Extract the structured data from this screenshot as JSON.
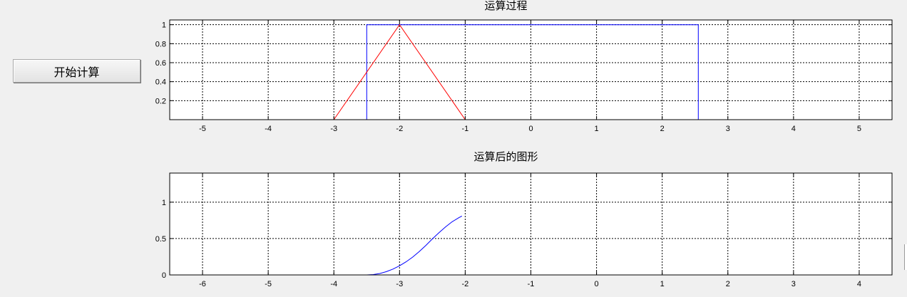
{
  "controls": {
    "start_button_label": "开始计算"
  },
  "chart_data": [
    {
      "type": "line",
      "title": "运算过程",
      "xlabel": "",
      "ylabel": "",
      "xlim": [
        -5.5,
        5.5
      ],
      "ylim": [
        0,
        1.05
      ],
      "xticks": [
        -5,
        -4,
        -3,
        -2,
        -1,
        0,
        1,
        2,
        3,
        4,
        5
      ],
      "yticks": [
        0.2,
        0.4,
        0.6,
        0.8,
        1
      ],
      "grid": true,
      "series": [
        {
          "color": "#0000ff",
          "x": [
            -2.5,
            -2.5,
            2.55,
            2.55
          ],
          "y": [
            0,
            1,
            1,
            0
          ]
        },
        {
          "color": "#ff0000",
          "x": [
            -3,
            -2,
            -1
          ],
          "y": [
            0,
            1,
            0
          ]
        }
      ]
    },
    {
      "type": "line",
      "title": "运算后的图形",
      "xlabel": "",
      "ylabel": "",
      "xlim": [
        -6.5,
        4.5
      ],
      "ylim": [
        0,
        1.4
      ],
      "xticks": [
        -6,
        -5,
        -4,
        -3,
        -2,
        -1,
        0,
        1,
        2,
        3,
        4
      ],
      "yticks": [
        0,
        0.5,
        1
      ],
      "grid": true,
      "series": [
        {
          "color": "#0000ff",
          "x": [
            -6.5,
            -3.5,
            -3.4,
            -3.3,
            -3.2,
            -3.1,
            -3.0,
            -2.9,
            -2.8,
            -2.7,
            -2.6,
            -2.5,
            -2.4,
            -2.3,
            -2.2,
            -2.1,
            -2.05
          ],
          "y": [
            0,
            0,
            0.005,
            0.02,
            0.045,
            0.08,
            0.125,
            0.18,
            0.245,
            0.32,
            0.405,
            0.495,
            0.58,
            0.66,
            0.73,
            0.785,
            0.81
          ]
        }
      ]
    }
  ]
}
